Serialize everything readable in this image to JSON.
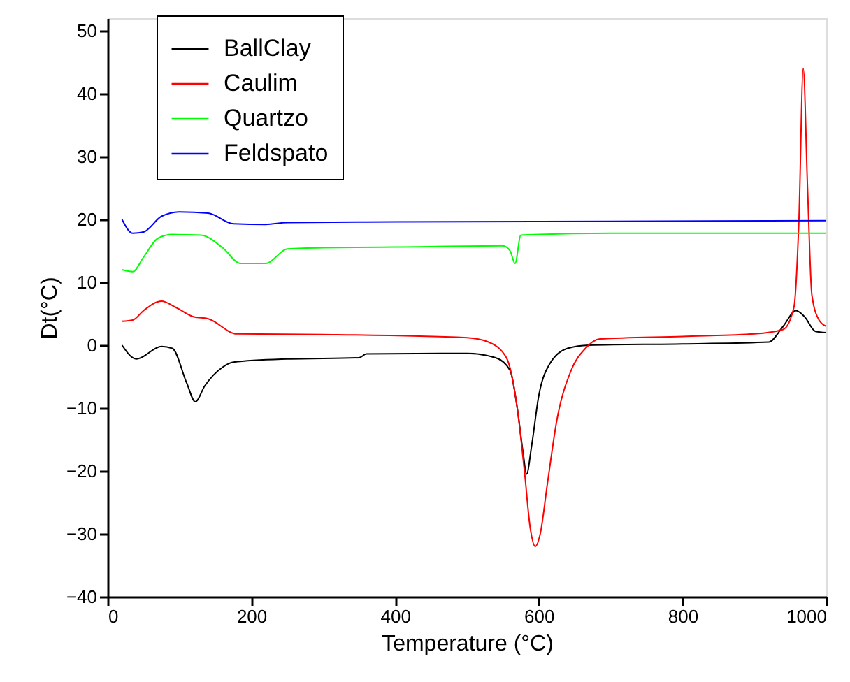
{
  "chart_data": {
    "type": "line",
    "xlabel": "Temperature (°C)",
    "ylabel": "Dt(°C)",
    "xlim": [
      0,
      1000
    ],
    "ylim": [
      -40,
      52
    ],
    "xticks": [
      0,
      200,
      400,
      600,
      800,
      1000
    ],
    "yticks": [
      -40,
      -30,
      -20,
      -10,
      0,
      10,
      20,
      30,
      40,
      50
    ],
    "grid": false,
    "legend": "top left",
    "marker": "none",
    "line_style": "solid",
    "series": [
      {
        "name": "BallClay",
        "color": "#000000",
        "x": [
          20,
          40,
          75,
          90,
          110,
          122,
          135,
          160,
          175,
          250,
          350,
          360,
          500,
          540,
          560,
          570,
          578,
          583,
          590,
          600,
          615,
          640,
          670,
          800,
          920,
          940,
          958,
          970,
          985,
          1000
        ],
        "values": [
          0,
          -2.2,
          -0.2,
          -0.5,
          -6,
          -9,
          -6.5,
          -3.5,
          -2.7,
          -2.2,
          -2,
          -1.4,
          -1.3,
          -2,
          -4,
          -10,
          -17,
          -20.5,
          -16,
          -8,
          -3,
          -0.5,
          0,
          0.2,
          0.5,
          3,
          5.5,
          4.5,
          2.2,
          2
        ]
      },
      {
        "name": "Caulim",
        "color": "#ff0000",
        "x": [
          20,
          35,
          50,
          75,
          95,
          120,
          140,
          180,
          300,
          500,
          530,
          555,
          570,
          580,
          588,
          595,
          602,
          612,
          625,
          645,
          665,
          685,
          800,
          900,
          940,
          955,
          962,
          968,
          974,
          980,
          990,
          1000
        ],
        "values": [
          3.8,
          4,
          5.5,
          7,
          6,
          4.5,
          4.2,
          1.8,
          1.7,
          1.2,
          0.5,
          -2,
          -10,
          -20,
          -29,
          -32,
          -30,
          -22,
          -12,
          -4,
          -0.5,
          1,
          1.4,
          1.8,
          2.5,
          6,
          20,
          44,
          25,
          8,
          4,
          3
        ]
      },
      {
        "name": "Quartzo",
        "color": "#00ff00",
        "x": [
          20,
          35,
          50,
          70,
          90,
          130,
          160,
          185,
          220,
          250,
          300,
          400,
          550,
          560,
          567,
          575,
          700,
          1000
        ],
        "values": [
          12,
          11.7,
          14,
          17,
          17.6,
          17.5,
          15.5,
          13,
          13,
          15.3,
          15.5,
          15.6,
          15.8,
          15,
          13,
          17.5,
          17.8,
          17.8
        ]
      },
      {
        "name": "Feldspato",
        "color": "#0000ff",
        "x": [
          20,
          35,
          50,
          75,
          100,
          140,
          175,
          220,
          250,
          400,
          700,
          1000
        ],
        "values": [
          20,
          17.8,
          18,
          20.5,
          21.2,
          21,
          19.3,
          19.2,
          19.5,
          19.6,
          19.7,
          19.8
        ]
      }
    ]
  }
}
